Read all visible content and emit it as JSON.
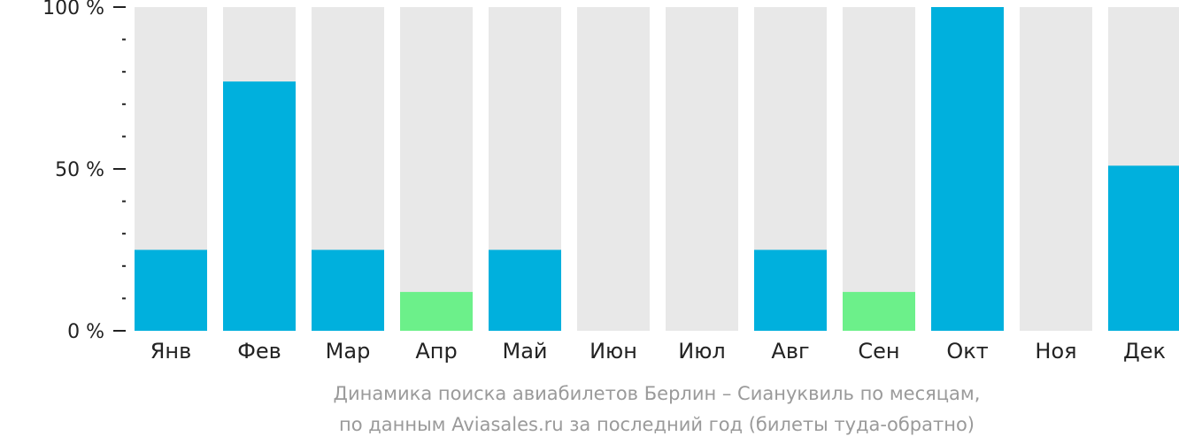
{
  "chart_data": {
    "type": "bar",
    "categories": [
      "Янв",
      "Фев",
      "Мар",
      "Апр",
      "Май",
      "Июн",
      "Июл",
      "Авг",
      "Сен",
      "Окт",
      "Ноя",
      "Дек"
    ],
    "values": [
      25,
      77,
      25,
      12,
      25,
      0,
      0,
      25,
      12,
      100,
      0,
      51
    ],
    "ylim": [
      0,
      100
    ],
    "yticks": [
      {
        "value": 0,
        "label": "0 %"
      },
      {
        "value": 50,
        "label": "50 %"
      },
      {
        "value": 100,
        "label": "100 %"
      }
    ],
    "minor_tick_step": 10,
    "caption_line1": "Динамика поиска авиабилетов Берлин – Сиануквиль по месяцам,",
    "caption_line2": "по данным Aviasales.ru за последний год (билеты туда-обратно)",
    "colors": {
      "bar_default": "#00b0dd",
      "bar_low": "#6cf08a",
      "bar_background": "#e8e8e8",
      "axis": "#222222",
      "caption": "#9a9a9a"
    },
    "low_threshold": 15,
    "grid": false,
    "legend": "none"
  }
}
